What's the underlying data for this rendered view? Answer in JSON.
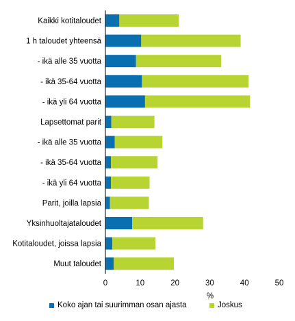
{
  "chart_data": {
    "type": "bar",
    "orientation": "horizontal",
    "stacked": true,
    "categories": [
      "Kaikki kotitaloudet",
      "1 h taloudet yhteensä",
      "- ikä alle 35 vuotta",
      "- ikä 35-64 vuotta",
      "- ikä yli 64 vuotta",
      "Lapsettomat parit",
      "- ikä alle 35 vuotta",
      "- ikä 35-64 vuotta",
      "- ikä yli 64 vuotta",
      "Parit, joilla lapsia",
      "Yksinhuoltajataloudet",
      "Kotitaloudet, joissa lapsia",
      "Muut taloudet"
    ],
    "series": [
      {
        "name": "Koko ajan tai suurimman osan ajasta",
        "color": "#0a6fb0",
        "values": [
          4.0,
          10.3,
          8.8,
          10.5,
          11.4,
          1.7,
          2.7,
          1.6,
          1.6,
          1.3,
          7.7,
          2.0,
          2.4
        ]
      },
      {
        "name": "Joskus",
        "color": "#b8d432",
        "values": [
          17.1,
          28.6,
          24.5,
          30.7,
          30.2,
          12.4,
          13.7,
          13.4,
          11.1,
          11.2,
          20.4,
          12.4,
          17.3
        ]
      }
    ],
    "xlabel": "%",
    "ylabel": "",
    "xlim": [
      0,
      50
    ],
    "xticks": [
      "0",
      "10",
      "20",
      "30",
      "40",
      "50"
    ],
    "grid": false,
    "legend_position": "bottom"
  }
}
